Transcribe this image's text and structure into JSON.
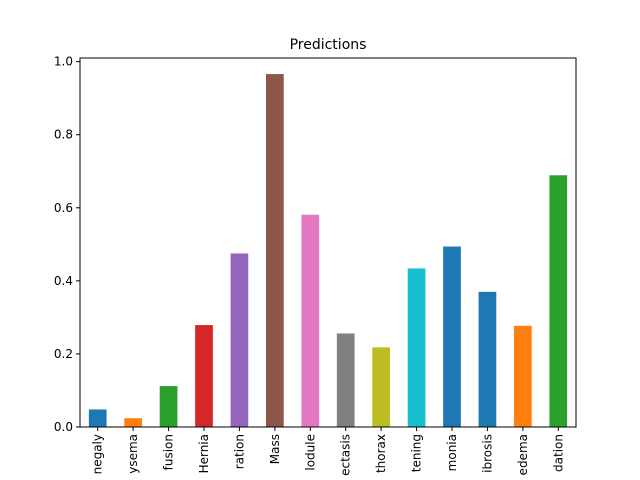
{
  "chart_data": {
    "type": "bar",
    "title": "Predictions",
    "xlabel": "",
    "ylabel": "",
    "ylim": [
      0,
      1.01
    ],
    "yticks": [
      "0.0",
      "0.2",
      "0.4",
      "0.6",
      "0.8",
      "1.0"
    ],
    "grid": false,
    "legend": "none",
    "categories": [
      "negaly",
      "ysema",
      "fusion",
      "Hernia",
      "ration",
      "Mass",
      "lodule",
      "ectasis",
      "thorax",
      "tening",
      "monia",
      "ibrosis",
      "edema",
      "dation"
    ],
    "values": [
      0.048,
      0.024,
      0.112,
      0.279,
      0.475,
      0.966,
      0.581,
      0.256,
      0.218,
      0.434,
      0.494,
      0.37,
      0.277,
      0.689
    ],
    "colors": [
      "#1f77b4",
      "#ff7f0e",
      "#2ca02c",
      "#d62728",
      "#9467bd",
      "#8c564b",
      "#e377c2",
      "#7f7f7f",
      "#bcbd22",
      "#17becf",
      "#1f77b4",
      "#1f77b4",
      "#ff7f0e",
      "#2ca02c"
    ]
  }
}
